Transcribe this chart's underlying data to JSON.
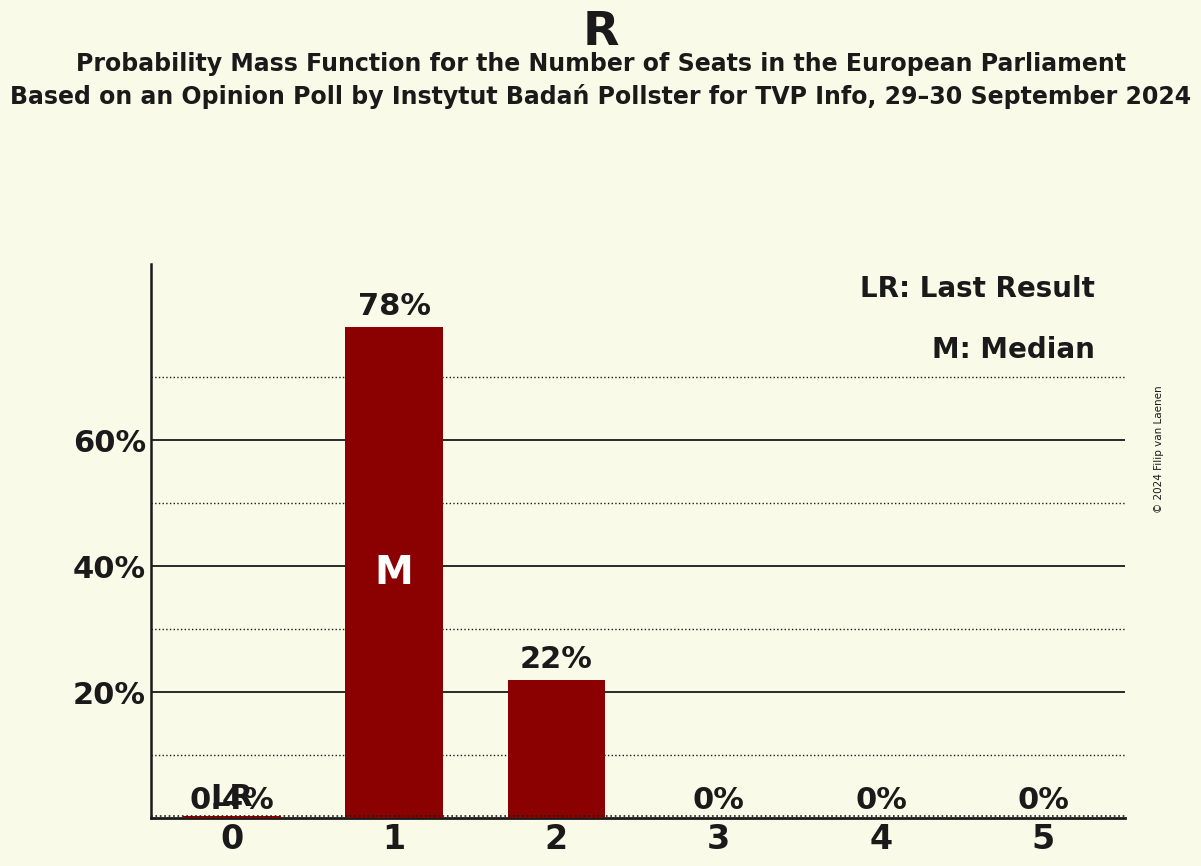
{
  "title": "R",
  "subtitle1": "Probability Mass Function for the Number of Seats in the European Parliament",
  "subtitle2": "Based on an Opinion Poll by Instytut Badań Pollster for TVP Info, 29–30 September 2024",
  "copyright": "© 2024 Filip van Laenen",
  "categories": [
    0,
    1,
    2,
    3,
    4,
    5
  ],
  "values": [
    0.004,
    0.78,
    0.22,
    0.0,
    0.0,
    0.0
  ],
  "bar_color": "#8b0000",
  "background_color": "#fafae8",
  "text_color": "#1a1a1a",
  "ytick_major": [
    0.2,
    0.4,
    0.6
  ],
  "ytick_minor": [
    0.1,
    0.3,
    0.5,
    0.7
  ],
  "ytick_labels": {
    "0.2": "20%",
    "0.4": "40%",
    "0.6": "60%"
  },
  "ylim": [
    0,
    0.88
  ],
  "bar_labels": [
    "0.4%",
    "78%",
    "22%",
    "0%",
    "0%",
    "0%"
  ],
  "median_bar": 1,
  "lr_bar": 0,
  "lr_value": 0.004,
  "legend_lr": "LR: Last Result",
  "legend_m": "M: Median",
  "title_fontsize": 34,
  "subtitle_fontsize": 17,
  "axis_label_fontsize": 22,
  "bar_label_fontsize": 22,
  "legend_fontsize": 20,
  "m_fontsize": 28,
  "xtick_fontsize": 24
}
